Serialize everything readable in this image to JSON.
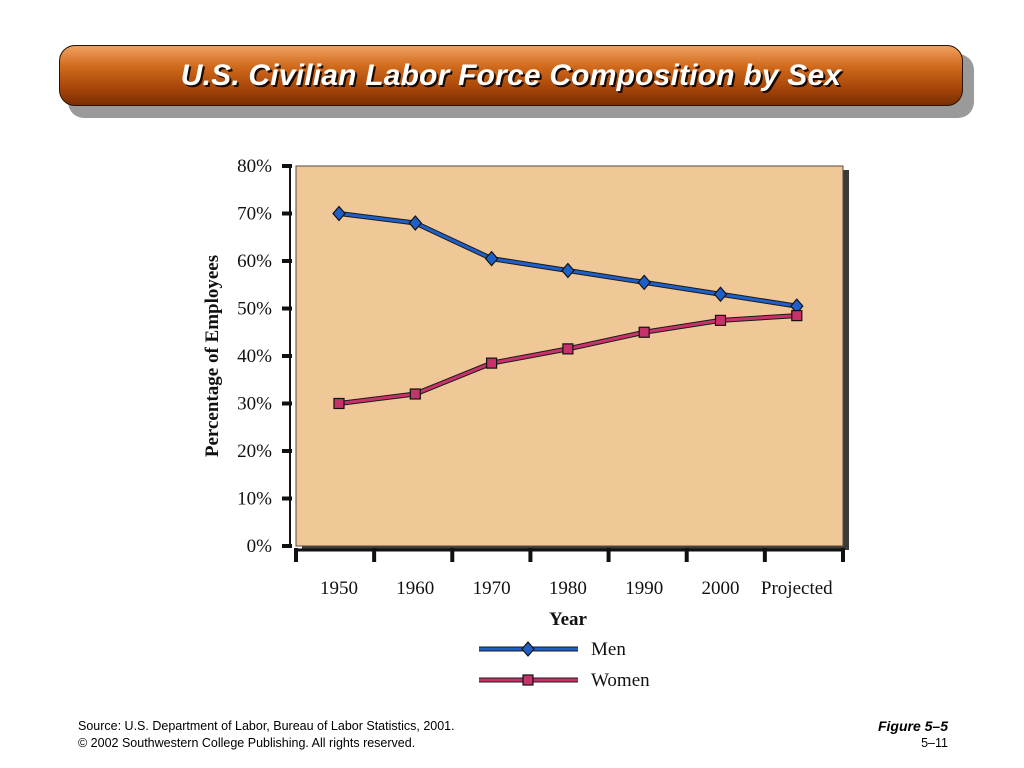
{
  "title": "U.S. Civilian Labor Force Composition by Sex",
  "footer": {
    "source": "Source: U.S. Department of Labor, Bureau of Labor Statistics, 2001.",
    "copyright": "© 2002 Southwestern College Publishing. All rights reserved.",
    "figure": "Figure 5–5",
    "page": "5–11"
  },
  "colors": {
    "plot_bg": "#f0c898",
    "men": "#1f5fc8",
    "women": "#c8326a",
    "title_bar": "#b4500e"
  },
  "chart_data": {
    "type": "line",
    "xlabel": "Year",
    "ylabel": "Percentage of Employees",
    "categories": [
      "1950",
      "1960",
      "1970",
      "1980",
      "1990",
      "2000",
      "Projected"
    ],
    "yticks": [
      "0%",
      "10%",
      "20%",
      "30%",
      "40%",
      "50%",
      "60%",
      "70%",
      "80%"
    ],
    "ylim": [
      0,
      80
    ],
    "grid": false,
    "legend_placement": "bottom-center",
    "series": [
      {
        "name": "Men",
        "color": "#1f5fc8",
        "values": [
          70,
          68,
          60.5,
          58,
          55.5,
          53,
          50.5
        ]
      },
      {
        "name": "Women",
        "color": "#c8326a",
        "values": [
          30,
          32,
          38.5,
          41.5,
          45,
          47.5,
          48.5
        ]
      }
    ]
  }
}
